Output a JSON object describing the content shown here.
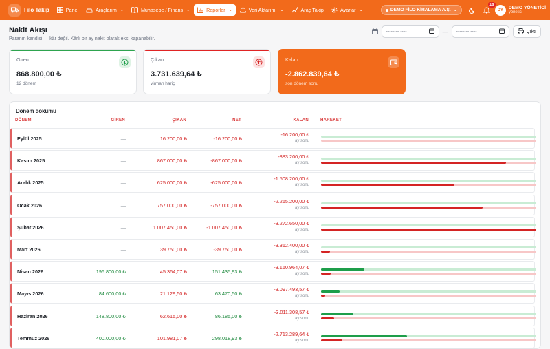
{
  "nav": {
    "brand": "Filo Takip",
    "items": [
      {
        "label": "Panel",
        "icon": "grid-icon",
        "dropdown": false
      },
      {
        "label": "Araçlarım",
        "icon": "car-icon",
        "dropdown": true
      },
      {
        "label": "Muhasebe / Finans",
        "icon": "book-icon",
        "dropdown": true
      },
      {
        "label": "Raporlar",
        "icon": "bar-chart-icon",
        "dropdown": true
      },
      {
        "label": "Veri Aktarımı",
        "icon": "upload-icon",
        "dropdown": true
      },
      {
        "label": "Araç Takip",
        "icon": "radar-icon",
        "dropdown": false
      },
      {
        "label": "Ayarlar",
        "icon": "gear-icon",
        "dropdown": true
      }
    ],
    "active_index": 3,
    "tenant": "DEMO FİLO KİRALAMA A.Ş.",
    "notifications_count": "18",
    "user_initials": "DY",
    "user_name": "DEMO YÖNETİCİ",
    "user_role": "yönetici"
  },
  "page": {
    "title": "Nakit Akışı",
    "subtitle": "Paranın kendisi — kâr değil. Kârlı bir ay nakit olarak eksi kapanabilir.",
    "date_placeholder": "-------- ----",
    "date_separator": "—",
    "print_label": "Çıktı"
  },
  "cards": [
    {
      "label": "Giren",
      "value": "868.800,00 ₺",
      "foot": "12 dönem",
      "accent": "#2ea44f",
      "icon": "arrow-down-circle-icon"
    },
    {
      "label": "Çıkan",
      "value": "3.731.639,64 ₺",
      "foot": "virman hariç",
      "accent": "#e02424",
      "icon": "arrow-up-circle-icon"
    },
    {
      "label": "Kalan",
      "value": "-2.862.839,64 ₺",
      "foot": "son dönem sonu",
      "accent": "#f26a1b",
      "icon": "wallet-icon"
    }
  ],
  "table": {
    "title": "Dönem dökümü",
    "headers": {
      "donem": "DÖNEM",
      "giren": "GİREN",
      "cikan": "ÇIKAN",
      "net": "NET",
      "kalan": "KALAN",
      "hareket": "HAREKET"
    },
    "kalan_sub": "ay sonu",
    "rows": [
      {
        "month": "Eylül 2025",
        "giren": "—",
        "cikan": "16.200,00 ₺",
        "net": "-16.200,00 ₺",
        "kalan": "-16.200,00 ₺",
        "in_ratio": 0.0,
        "out_ratio": 0.0
      },
      {
        "month": "Kasım 2025",
        "giren": "—",
        "cikan": "867.000,00 ₺",
        "net": "-867.000,00 ₺",
        "kalan": "-883.200,00 ₺",
        "in_ratio": 0.0,
        "out_ratio": 0.86
      },
      {
        "month": "Aralık 2025",
        "giren": "—",
        "cikan": "625.000,00 ₺",
        "net": "-625.000,00 ₺",
        "kalan": "-1.508.200,00 ₺",
        "in_ratio": 0.0,
        "out_ratio": 0.62
      },
      {
        "month": "Ocak 2026",
        "giren": "—",
        "cikan": "757.000,00 ₺",
        "net": "-757.000,00 ₺",
        "kalan": "-2.265.200,00 ₺",
        "in_ratio": 0.0,
        "out_ratio": 0.75
      },
      {
        "month": "Şubat 2026",
        "giren": "—",
        "cikan": "1.007.450,00 ₺",
        "net": "-1.007.450,00 ₺",
        "kalan": "-3.272.650,00 ₺",
        "in_ratio": 0.0,
        "out_ratio": 1.0
      },
      {
        "month": "Mart 2026",
        "giren": "—",
        "cikan": "39.750,00 ₺",
        "net": "-39.750,00 ₺",
        "kalan": "-3.312.400,00 ₺",
        "in_ratio": 0.0,
        "out_ratio": 0.04
      },
      {
        "month": "Nisan 2026",
        "giren": "196.800,00 ₺",
        "cikan": "45.364,07 ₺",
        "net": "151.435,93 ₺",
        "kalan": "-3.160.964,07 ₺",
        "in_ratio": 0.2,
        "out_ratio": 0.045
      },
      {
        "month": "Mayıs 2026",
        "giren": "84.600,00 ₺",
        "cikan": "21.129,50 ₺",
        "net": "63.470,50 ₺",
        "kalan": "-3.097.493,57 ₺",
        "in_ratio": 0.085,
        "out_ratio": 0.02
      },
      {
        "month": "Haziran 2026",
        "giren": "148.800,00 ₺",
        "cikan": "62.615,00 ₺",
        "net": "86.185,00 ₺",
        "kalan": "-3.011.308,57 ₺",
        "in_ratio": 0.15,
        "out_ratio": 0.062
      },
      {
        "month": "Temmuz 2026",
        "giren": "400.000,00 ₺",
        "cikan": "101.981,07 ₺",
        "net": "298.018,93 ₺",
        "kalan": "-2.713.289,64 ₺",
        "in_ratio": 0.4,
        "out_ratio": 0.1
      }
    ]
  }
}
